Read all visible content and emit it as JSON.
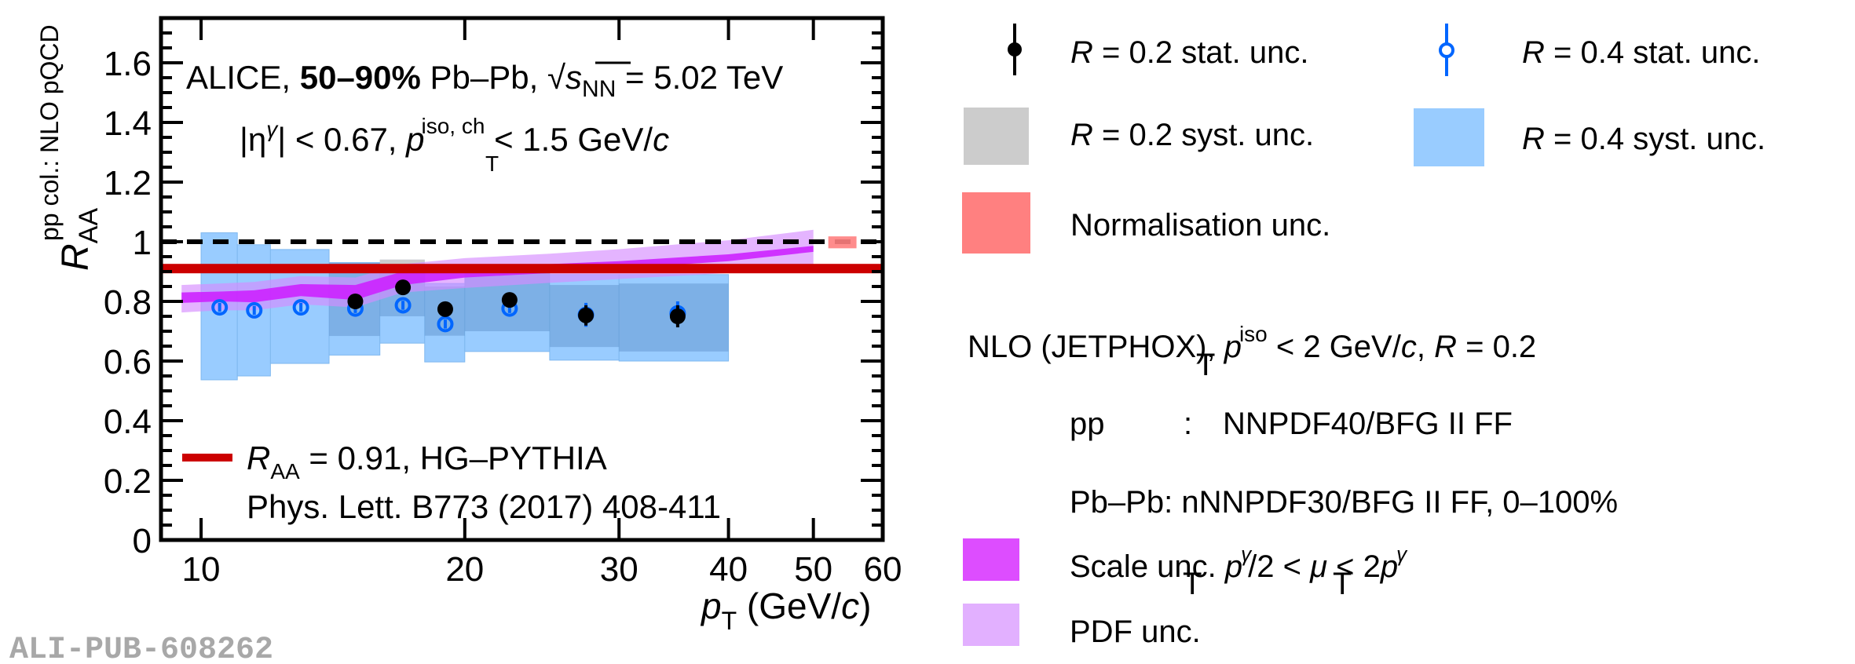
{
  "chart_data": {
    "type": "scatter",
    "title": "ALICE, 50–90% Pb–Pb, √sNN = 5.02 TeV",
    "annotations": {
      "system_prefix": "ALICE, ",
      "centrality": "50–90%",
      "system": " Pb–Pb, ",
      "sqrt_s": "s",
      "sqrt_s_sub": "NN",
      "energy": " = 5.02 TeV",
      "cuts_eta": "|η",
      "cuts_eta_sup": "γ",
      "cuts_eta_rest": "| < 0.67, ",
      "cuts_p": "p",
      "cuts_p_sup": "iso, ch",
      "cuts_p_sub": "T",
      "cuts_p_rest": " < 1.5 GeV/",
      "cuts_c": "c",
      "hg_label_R": "R",
      "hg_label_sub": "AA",
      "hg_label_rest": " = 0.91, HG–PYTHIA",
      "hg_ref": "Phys. Lett. B773 (2017) 408-411"
    },
    "xlabel": {
      "p": "p",
      "sub": "T",
      "rest": " (GeV/",
      "c": "c",
      "close": ")"
    },
    "ylabel": {
      "R": "R",
      "sub": "AA",
      "sup": "pp col.: NLO pQCD"
    },
    "xscale": "log",
    "xlim": [
      9.0,
      60
    ],
    "ylim": [
      0,
      1.75
    ],
    "xticks": [
      10,
      20,
      30,
      40,
      50,
      60
    ],
    "xtick_labels": [
      "10",
      "20",
      "30",
      "40",
      "50",
      "60"
    ],
    "yticks": [
      0,
      0.2,
      0.4,
      0.6,
      0.8,
      1,
      1.2,
      1.4,
      1.6
    ],
    "ytick_labels": [
      "0",
      "0.2",
      "0.4",
      "0.6",
      "0.8",
      "1",
      "1.2",
      "1.4",
      "1.6"
    ],
    "reference_line": {
      "y": 1.0,
      "style": "dashed",
      "color": "#000000"
    },
    "hg_pythia_line": {
      "y": 0.91,
      "color": "#cc0000"
    },
    "normalisation_box": {
      "x": [
        52,
        56
      ],
      "y": [
        0.978,
        1.018
      ],
      "color": "#ff8080"
    },
    "bins": [
      [
        10,
        11
      ],
      [
        11,
        12
      ],
      [
        12,
        14
      ],
      [
        14,
        16
      ],
      [
        16,
        18
      ],
      [
        18,
        20
      ],
      [
        20,
        25
      ],
      [
        25,
        30
      ],
      [
        30,
        40
      ]
    ],
    "series": [
      {
        "name": "R = 0.4",
        "marker": "open-circle",
        "color": "#0066ff",
        "syst_color": "#99ccff",
        "points": [
          {
            "x": 10.5,
            "y": 0.78,
            "stat": 0.015,
            "syst": [
              0.537,
              1.03
            ]
          },
          {
            "x": 11.5,
            "y": 0.77,
            "stat": 0.015,
            "syst": [
              0.55,
              0.99
            ]
          },
          {
            "x": 13.0,
            "y": 0.78,
            "stat": 0.015,
            "syst": [
              0.592,
              0.974
            ]
          },
          {
            "x": 15.0,
            "y": 0.776,
            "stat": 0.015,
            "syst": [
              0.62,
              0.93
            ]
          },
          {
            "x": 17.0,
            "y": 0.787,
            "stat": 0.015,
            "syst": [
              0.66,
              0.905
            ]
          },
          {
            "x": 19.0,
            "y": 0.724,
            "stat": 0.015,
            "syst": [
              0.597,
              0.86
            ]
          },
          {
            "x": 22.5,
            "y": 0.776,
            "stat": 0.015,
            "syst": [
              0.632,
              0.9
            ]
          },
          {
            "x": 27.5,
            "y": 0.755,
            "stat": 0.04,
            "syst": [
              0.603,
              0.89
            ]
          },
          {
            "x": 35.0,
            "y": 0.76,
            "stat": 0.04,
            "syst": [
              0.6,
              0.89
            ]
          }
        ]
      },
      {
        "name": "R = 0.2",
        "marker": "filled-circle",
        "color": "#000000",
        "syst_color": "#cccccc",
        "points": [
          {
            "x": 15.0,
            "y": 0.8,
            "stat": 0.015,
            "syst": [
              0.684,
              0.93
            ]
          },
          {
            "x": 17.0,
            "y": 0.847,
            "stat": 0.015,
            "syst": [
              0.75,
              0.94
            ]
          },
          {
            "x": 19.0,
            "y": 0.774,
            "stat": 0.015,
            "syst": [
              0.685,
              0.85
            ]
          },
          {
            "x": 22.5,
            "y": 0.805,
            "stat": 0.015,
            "syst": [
              0.7,
              0.9
            ]
          },
          {
            "x": 27.5,
            "y": 0.753,
            "stat": 0.034,
            "syst": [
              0.647,
              0.855
            ]
          },
          {
            "x": 35.0,
            "y": 0.75,
            "stat": 0.037,
            "syst": [
              0.632,
              0.86
            ]
          }
        ]
      }
    ],
    "nlo": {
      "scale_color": "#dd33ff",
      "pdf_color": "#e2b0ff",
      "x": [
        9.5,
        10.5,
        11.5,
        13.0,
        15.0,
        17.0,
        20.0,
        25.0,
        30.0,
        40.0,
        50.0
      ],
      "scale_lo": [
        0.795,
        0.8,
        0.797,
        0.818,
        0.805,
        0.855,
        0.88,
        0.895,
        0.91,
        0.935,
        0.966
      ],
      "scale_hi": [
        0.83,
        0.833,
        0.837,
        0.858,
        0.855,
        0.9,
        0.915,
        0.925,
        0.935,
        0.958,
        0.986
      ],
      "pdf_lo": [
        0.763,
        0.77,
        0.77,
        0.79,
        0.78,
        0.83,
        0.845,
        0.862,
        0.875,
        0.895,
        0.91
      ],
      "pdf_hi": [
        0.855,
        0.86,
        0.865,
        0.885,
        0.88,
        0.925,
        0.945,
        0.96,
        0.975,
        1.005,
        1.04
      ]
    }
  },
  "legend": {
    "r02_stat": {
      "R": "R",
      "rest": " = 0.2 stat. unc."
    },
    "r04_stat": {
      "R": "R",
      "rest": " = 0.4 stat. unc."
    },
    "r02_syst": {
      "R": "R",
      "rest": " = 0.2 syst. unc."
    },
    "r04_syst": {
      "R": "R",
      "rest": " = 0.4 syst. unc."
    },
    "norm": "Normalisation unc.",
    "nlo_header": {
      "pre": "NLO (JETPHOX), ",
      "p": "p",
      "sup": "iso",
      "sub": "T",
      "mid": " < 2 GeV/",
      "c": "c",
      "comma": ", ",
      "R": "R",
      "end": " = 0.2"
    },
    "pp_line": {
      "label": "pp",
      "colon": ":",
      "value": "NNPDF40/BFG II FF"
    },
    "pbpb_line": "Pb–Pb: nNNPDF30/BFG II FF, 0–100%",
    "scale": {
      "pre": "Scale unc. ",
      "p": "p",
      "sup": "γ",
      "sub": "T",
      "mid": "/2 < ",
      "mu": "μ",
      "lt": " < 2",
      "p2": "p",
      "sup2": "γ",
      "sub2": "T"
    },
    "pdf": "PDF unc."
  },
  "watermark": "ALI-PUB-608262"
}
